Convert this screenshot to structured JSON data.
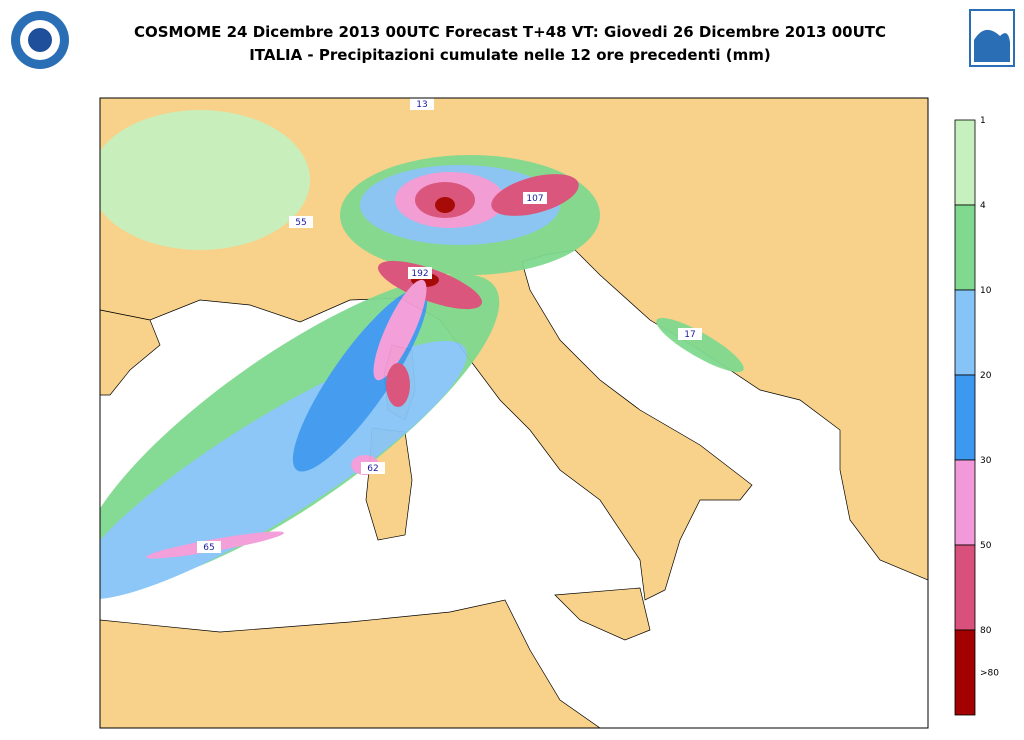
{
  "header": {
    "title": "COSMOME 24 Dicembre 2013 00UTC Forecast T+48 VT: Giovedi 26 Dicembre 2013 00UTC",
    "subtitle": "ITALIA - Precipitazioni cumulate nelle 12 ore precedenti (mm)"
  },
  "map": {
    "maxima": [
      13,
      55,
      107,
      192,
      17,
      62,
      65
    ]
  },
  "legend": {
    "levels": [
      {
        "label": "1",
        "color": "#c6f1be"
      },
      {
        "label": "4",
        "color": "#7fd98f"
      },
      {
        "label": "10",
        "color": "#86c4f7"
      },
      {
        "label": "20",
        "color": "#3d98ef"
      },
      {
        "label": "30",
        "color": "#f29ad9"
      },
      {
        "label": "50",
        "color": "#d9507c"
      },
      {
        "label": "80",
        "color": "#a30000"
      }
    ],
    "last_label": ">80"
  }
}
